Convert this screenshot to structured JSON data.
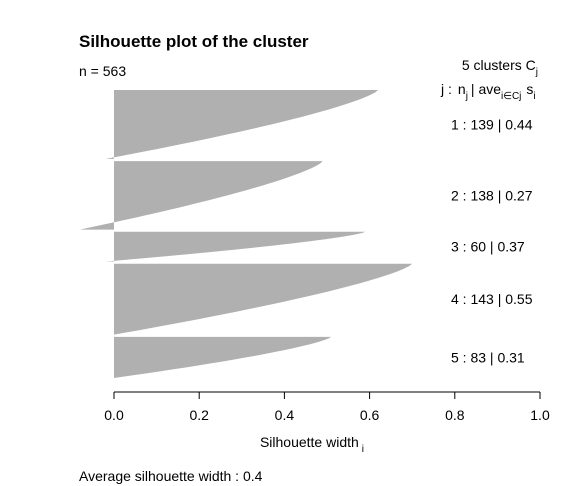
{
  "chart_data": {
    "type": "bar",
    "orientation": "horizontal",
    "title": "Silhouette plot of the cluster",
    "n_label": "n = 563",
    "xlabel": "Silhouette width",
    "xlabel_sub": "i",
    "xlim": [
      0,
      1
    ],
    "xticks": [
      0.0,
      0.2,
      0.4,
      0.6,
      0.8,
      1.0
    ],
    "xtick_labels": [
      "0.0",
      "0.2",
      "0.4",
      "0.6",
      "0.8",
      "1.0"
    ],
    "header": {
      "line1": "5  clusters  C",
      "line1_sub": "j",
      "j": "j :",
      "n": "n",
      "n_sub": "j",
      "sep": "| ave",
      "ave_sub": "i∈Cj",
      "s": "s",
      "s_sub": "i"
    },
    "clusters": [
      {
        "id": "1",
        "n": 139,
        "ave": 0.44,
        "label": "1 :   139  |  0.44",
        "max": 0.62,
        "min": -0.02
      },
      {
        "id": "2",
        "n": 138,
        "ave": 0.27,
        "label": "2 :   138  |  0.27",
        "max": 0.49,
        "min": -0.08
      },
      {
        "id": "3",
        "n": 60,
        "ave": 0.37,
        "label": "3 :   60  |  0.37",
        "max": 0.59,
        "min": -0.02
      },
      {
        "id": "4",
        "n": 143,
        "ave": 0.55,
        "label": "4 :   143  |  0.55",
        "max": 0.7,
        "min": 0.0
      },
      {
        "id": "5",
        "n": 83,
        "ave": 0.31,
        "label": "5 :   83  |  0.31",
        "max": 0.51,
        "min": 0.0
      }
    ],
    "average_label": "Average silhouette width :  0.4",
    "average": 0.4,
    "bar_color": "#b0b0b0",
    "grid": false
  }
}
